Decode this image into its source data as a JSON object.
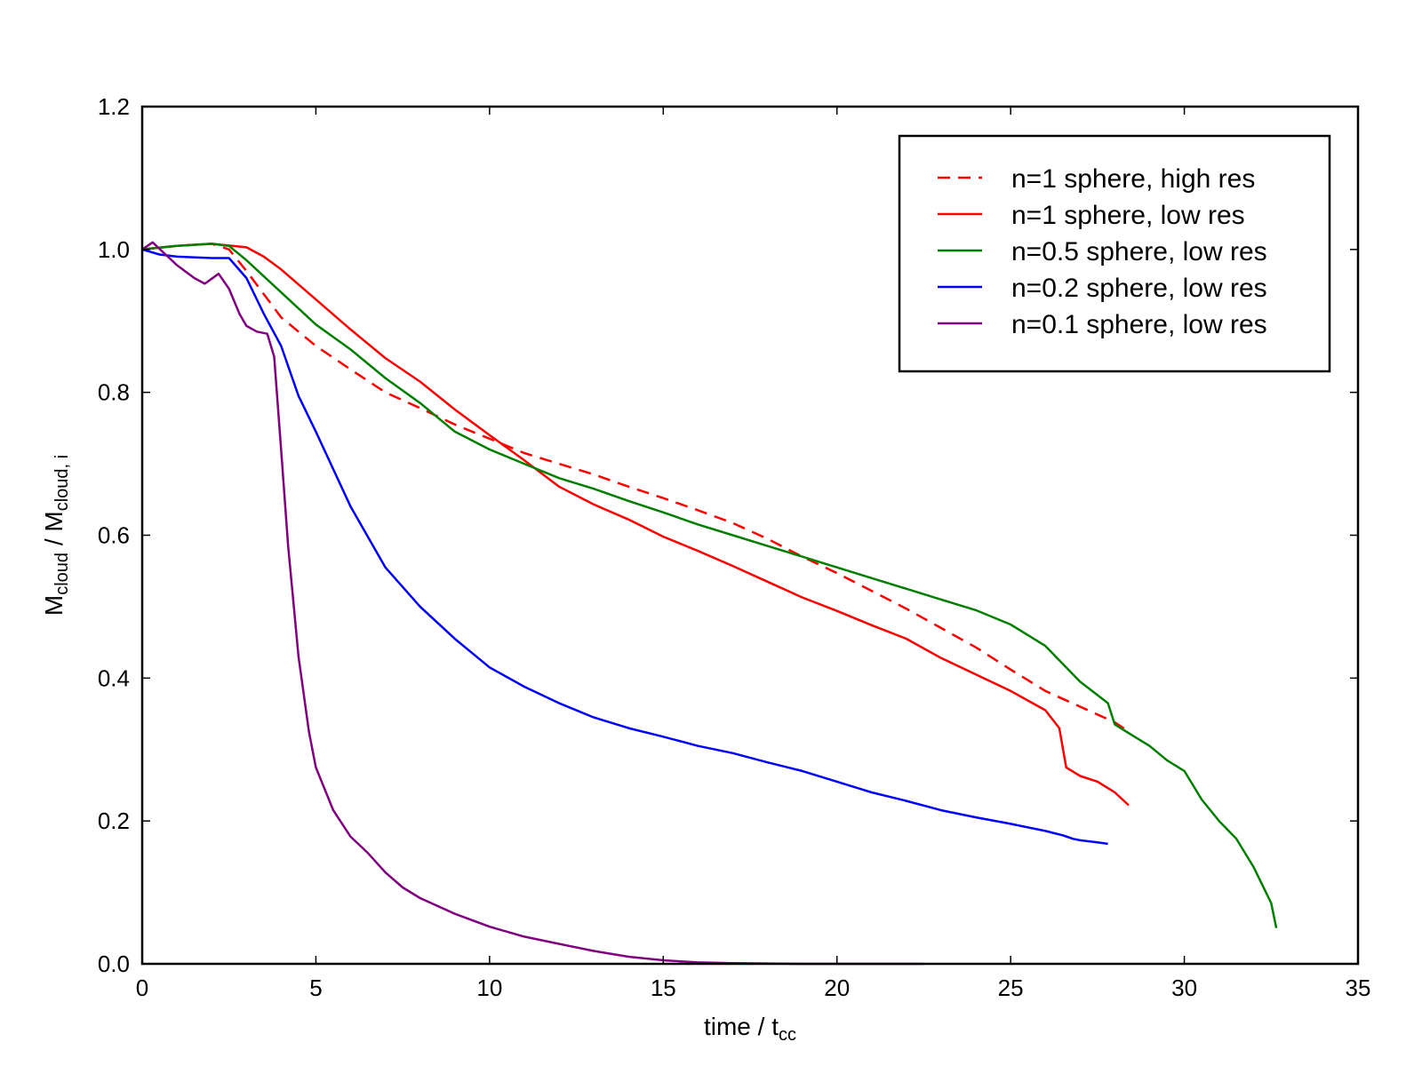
{
  "chart_data": {
    "type": "line",
    "xlabel": {
      "main": "time / t",
      "sub": "cc"
    },
    "ylabel": {
      "main": "M",
      "sub1": "cloud",
      "mid": " / M",
      "sub2": "cloud, i"
    },
    "xlim": [
      0,
      35
    ],
    "ylim": [
      0,
      1.2
    ],
    "xticks": [
      0,
      5,
      10,
      15,
      20,
      25,
      30,
      35
    ],
    "yticks": [
      0.0,
      0.2,
      0.4,
      0.6,
      0.8,
      1.0,
      1.2
    ],
    "xtick_labels": [
      "0",
      "5",
      "10",
      "15",
      "20",
      "25",
      "30",
      "35"
    ],
    "ytick_labels": [
      "0.0",
      "0.2",
      "0.4",
      "0.6",
      "0.8",
      "1.0",
      "1.2"
    ],
    "grid": false,
    "legend_position": "top-right",
    "series": [
      {
        "name": "n=1 sphere, high res",
        "color": "#ff0000",
        "dash": true,
        "x": [
          0,
          1,
          2,
          2.5,
          3,
          4,
          5,
          6,
          7,
          8,
          9,
          10,
          11,
          12,
          13,
          14,
          15,
          16,
          17,
          18,
          19,
          20,
          21,
          22,
          23,
          24,
          25,
          26,
          27,
          28,
          28.4
        ],
        "y": [
          1.0,
          1.005,
          1.008,
          1.0,
          0.97,
          0.905,
          0.865,
          0.832,
          0.8,
          0.778,
          0.755,
          0.735,
          0.715,
          0.7,
          0.685,
          0.668,
          0.652,
          0.635,
          0.617,
          0.595,
          0.57,
          0.547,
          0.522,
          0.497,
          0.47,
          0.443,
          0.412,
          0.382,
          0.36,
          0.338,
          0.325
        ]
      },
      {
        "name": "n=1 sphere, low res",
        "color": "#ff0000",
        "dash": false,
        "x": [
          0,
          1,
          2,
          3,
          3.5,
          4,
          5,
          6,
          7,
          8,
          9,
          10,
          11,
          12,
          13,
          14,
          15,
          16,
          17,
          18,
          19,
          20,
          21,
          22,
          23,
          24,
          25,
          26,
          26.4,
          26.6,
          27,
          27.5,
          28,
          28.4
        ],
        "y": [
          1.0,
          1.005,
          1.008,
          1.003,
          0.99,
          0.972,
          0.93,
          0.888,
          0.848,
          0.815,
          0.776,
          0.74,
          0.705,
          0.668,
          0.643,
          0.622,
          0.598,
          0.578,
          0.557,
          0.535,
          0.513,
          0.494,
          0.474,
          0.455,
          0.428,
          0.405,
          0.382,
          0.355,
          0.33,
          0.275,
          0.263,
          0.255,
          0.24,
          0.222
        ]
      },
      {
        "name": "n=0.5 sphere, low res",
        "color": "#007f00",
        "dash": false,
        "x": [
          0,
          1,
          2,
          2.5,
          3,
          4,
          5,
          6,
          7,
          8,
          9,
          10,
          11,
          12,
          13,
          14,
          15,
          16,
          17,
          18,
          19,
          20,
          21,
          22,
          23,
          24,
          25,
          26,
          27,
          27.8,
          28,
          28.5,
          29,
          29.5,
          30,
          30.5,
          31,
          31.5,
          32,
          32.5,
          32.65
        ],
        "y": [
          1.0,
          1.005,
          1.008,
          1.005,
          0.985,
          0.94,
          0.895,
          0.86,
          0.82,
          0.785,
          0.745,
          0.72,
          0.7,
          0.68,
          0.665,
          0.648,
          0.632,
          0.615,
          0.6,
          0.585,
          0.57,
          0.555,
          0.54,
          0.525,
          0.51,
          0.495,
          0.475,
          0.445,
          0.395,
          0.365,
          0.335,
          0.32,
          0.305,
          0.285,
          0.27,
          0.23,
          0.2,
          0.175,
          0.135,
          0.085,
          0.05
        ]
      },
      {
        "name": "n=0.2 sphere, low res",
        "color": "#0000ff",
        "dash": false,
        "x": [
          0,
          0.5,
          1,
          2,
          2.5,
          3,
          3.5,
          4,
          4.5,
          5,
          6,
          7,
          8,
          9,
          10,
          11,
          12,
          13,
          14,
          15,
          16,
          17,
          18,
          19,
          20,
          21,
          22,
          23,
          24,
          25,
          26,
          26.5,
          26.8,
          27,
          27.5,
          27.8
        ],
        "y": [
          1.0,
          0.993,
          0.99,
          0.988,
          0.988,
          0.96,
          0.91,
          0.865,
          0.795,
          0.745,
          0.64,
          0.555,
          0.5,
          0.455,
          0.415,
          0.388,
          0.365,
          0.345,
          0.33,
          0.318,
          0.305,
          0.295,
          0.282,
          0.27,
          0.255,
          0.24,
          0.228,
          0.215,
          0.205,
          0.196,
          0.186,
          0.18,
          0.175,
          0.173,
          0.17,
          0.168
        ]
      },
      {
        "name": "n=0.1 sphere, low res",
        "color": "#800080",
        "dash": false,
        "x": [
          0,
          0.3,
          1,
          1.5,
          1.8,
          2.2,
          2.5,
          2.8,
          3,
          3.3,
          3.6,
          3.8,
          4,
          4.2,
          4.5,
          4.8,
          5,
          5.5,
          6,
          6.5,
          7,
          7.5,
          8,
          9,
          10,
          11,
          12,
          13,
          14,
          15,
          16,
          17,
          18,
          19,
          20,
          21,
          22,
          22.5
        ],
        "y": [
          1.0,
          1.01,
          0.978,
          0.96,
          0.952,
          0.966,
          0.945,
          0.91,
          0.893,
          0.885,
          0.882,
          0.85,
          0.72,
          0.585,
          0.43,
          0.325,
          0.275,
          0.215,
          0.178,
          0.155,
          0.128,
          0.107,
          0.092,
          0.07,
          0.052,
          0.038,
          0.028,
          0.018,
          0.01,
          0.005,
          0.002,
          0.001,
          0.0005,
          0.0,
          0.0,
          0.0,
          0.0,
          0.0
        ]
      }
    ]
  }
}
